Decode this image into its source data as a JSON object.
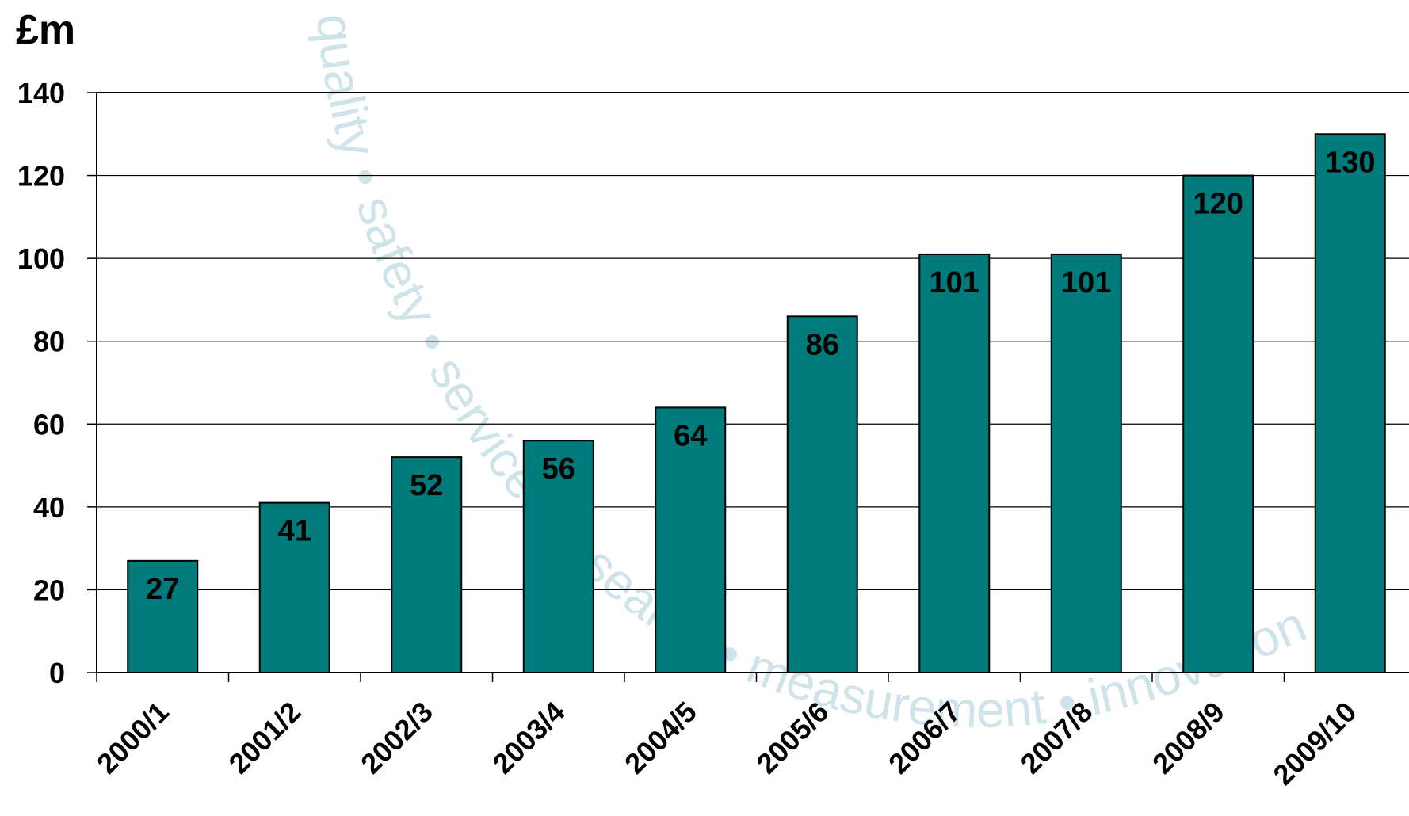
{
  "chart_data": {
    "type": "bar",
    "unit_label": "£m",
    "categories": [
      "2000/1",
      "2001/2",
      "2002/3",
      "2003/4",
      "2004/5",
      "2005/6",
      "2006/7",
      "2007/8",
      "2008/9",
      "2009/10"
    ],
    "values": [
      27,
      41,
      52,
      56,
      64,
      86,
      101,
      101,
      120,
      130
    ],
    "data_labels": [
      "27",
      "41",
      "52",
      "56",
      "64",
      "86",
      "101",
      "101",
      "120",
      "130"
    ],
    "ylim": [
      0,
      140
    ],
    "yticks": [
      "0",
      "20",
      "40",
      "60",
      "80",
      "100",
      "120",
      "140"
    ],
    "grid": true,
    "bar_color": "#007b7b",
    "watermark": "quality • safety • service • research • measurement • innovation •"
  }
}
